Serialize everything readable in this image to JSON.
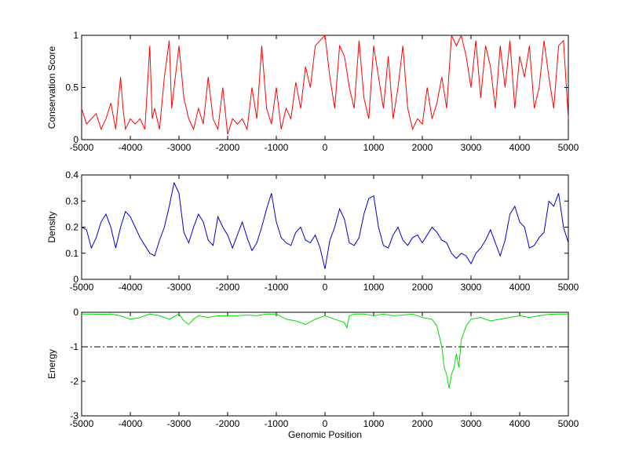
{
  "figure": {
    "background": "#ffffff"
  },
  "chart_data": [
    {
      "type": "line",
      "xlabel": "",
      "ylabel": "Conservation Score",
      "xlim": [
        -5000,
        5000
      ],
      "ylim": [
        0,
        1
      ],
      "xticks": [
        -5000,
        -4000,
        -3000,
        -2000,
        -1000,
        0,
        1000,
        2000,
        3000,
        4000,
        5000
      ],
      "yticks": [
        0,
        0.5,
        1
      ],
      "ytick_labels": [
        "0",
        "0.5",
        "1"
      ],
      "series": [
        {
          "color": "#ff0000",
          "x": [
            -5000,
            -4900,
            -4800,
            -4700,
            -4600,
            -4500,
            -4400,
            -4300,
            -4200,
            -4150,
            -4100,
            -4000,
            -3900,
            -3800,
            -3700,
            -3600,
            -3550,
            -3500,
            -3400,
            -3300,
            -3200,
            -3150,
            -3100,
            -3000,
            -2900,
            -2800,
            -2700,
            -2600,
            -2500,
            -2400,
            -2300,
            -2200,
            -2100,
            -2000,
            -1900,
            -1800,
            -1700,
            -1600,
            -1500,
            -1400,
            -1300,
            -1200,
            -1100,
            -1000,
            -900,
            -800,
            -700,
            -600,
            -500,
            -400,
            -300,
            -200,
            -100,
            0,
            100,
            200,
            300,
            400,
            500,
            600,
            700,
            800,
            900,
            1000,
            1100,
            1200,
            1300,
            1400,
            1500,
            1600,
            1700,
            1800,
            1900,
            2000,
            2100,
            2200,
            2300,
            2400,
            2500,
            2600,
            2700,
            2800,
            2900,
            3000,
            3100,
            3200,
            3300,
            3400,
            3500,
            3600,
            3700,
            3800,
            3900,
            4000,
            4100,
            4200,
            4300,
            4400,
            4500,
            4600,
            4700,
            4800,
            4900,
            5000
          ],
          "values": [
            0.3,
            0.15,
            0.2,
            0.25,
            0.1,
            0.2,
            0.35,
            0.1,
            0.6,
            0.3,
            0.1,
            0.2,
            0.15,
            0.2,
            0.1,
            0.9,
            0.2,
            0.3,
            0.1,
            0.6,
            0.95,
            0.3,
            0.5,
            0.9,
            0.4,
            0.2,
            0.1,
            0.3,
            0.15,
            0.6,
            0.2,
            0.1,
            0.5,
            0.05,
            0.2,
            0.15,
            0.2,
            0.1,
            0.5,
            0.2,
            0.9,
            0.3,
            0.15,
            0.5,
            0.1,
            0.3,
            0.2,
            0.55,
            0.3,
            0.7,
            0.5,
            0.9,
            0.95,
            1.0,
            0.6,
            0.3,
            0.9,
            0.8,
            0.5,
            0.3,
            0.95,
            0.4,
            0.2,
            0.9,
            0.6,
            0.3,
            0.8,
            0.2,
            0.5,
            0.9,
            0.3,
            0.1,
            0.2,
            0.15,
            0.5,
            0.2,
            0.35,
            0.6,
            0.3,
            1.0,
            0.9,
            1.0,
            0.8,
            0.5,
            0.95,
            0.4,
            0.9,
            0.7,
            0.3,
            0.9,
            0.5,
            0.95,
            0.3,
            0.8,
            0.6,
            0.9,
            0.3,
            0.5,
            0.95,
            0.6,
            0.3,
            0.9,
            0.95,
            0.2
          ]
        }
      ]
    },
    {
      "type": "line",
      "xlabel": "",
      "ylabel": "Density",
      "xlim": [
        -5000,
        5000
      ],
      "ylim": [
        0,
        0.4
      ],
      "xticks": [
        -5000,
        -4000,
        -3000,
        -2000,
        -1000,
        0,
        1000,
        2000,
        3000,
        4000,
        5000
      ],
      "yticks": [
        0,
        0.1,
        0.2,
        0.3,
        0.4
      ],
      "ytick_labels": [
        "0",
        "0.1",
        "0.2",
        "0.3",
        "0.4"
      ],
      "series": [
        {
          "color": "#0000cc",
          "x": [
            -5000,
            -4900,
            -4800,
            -4700,
            -4600,
            -4500,
            -4400,
            -4300,
            -4200,
            -4100,
            -4000,
            -3900,
            -3800,
            -3700,
            -3600,
            -3500,
            -3400,
            -3300,
            -3200,
            -3100,
            -3000,
            -2900,
            -2800,
            -2700,
            -2600,
            -2500,
            -2400,
            -2300,
            -2200,
            -2100,
            -2000,
            -1900,
            -1800,
            -1700,
            -1600,
            -1500,
            -1400,
            -1300,
            -1200,
            -1100,
            -1000,
            -900,
            -800,
            -700,
            -600,
            -500,
            -400,
            -300,
            -200,
            -100,
            0,
            100,
            200,
            300,
            400,
            500,
            600,
            700,
            800,
            900,
            1000,
            1100,
            1200,
            1300,
            1400,
            1500,
            1600,
            1700,
            1800,
            1900,
            2000,
            2100,
            2200,
            2300,
            2400,
            2500,
            2600,
            2700,
            2800,
            2900,
            3000,
            3100,
            3200,
            3300,
            3400,
            3500,
            3600,
            3700,
            3800,
            3900,
            4000,
            4100,
            4200,
            4300,
            4400,
            4500,
            4600,
            4700,
            4800,
            4900,
            5000
          ],
          "values": [
            0.2,
            0.19,
            0.12,
            0.16,
            0.22,
            0.25,
            0.2,
            0.12,
            0.2,
            0.26,
            0.24,
            0.2,
            0.16,
            0.13,
            0.1,
            0.09,
            0.15,
            0.2,
            0.28,
            0.37,
            0.33,
            0.18,
            0.14,
            0.2,
            0.25,
            0.22,
            0.15,
            0.13,
            0.24,
            0.2,
            0.17,
            0.12,
            0.17,
            0.22,
            0.16,
            0.11,
            0.14,
            0.2,
            0.27,
            0.33,
            0.22,
            0.16,
            0.14,
            0.13,
            0.18,
            0.2,
            0.15,
            0.14,
            0.17,
            0.12,
            0.04,
            0.15,
            0.2,
            0.27,
            0.23,
            0.14,
            0.13,
            0.16,
            0.25,
            0.31,
            0.32,
            0.2,
            0.13,
            0.12,
            0.17,
            0.2,
            0.15,
            0.13,
            0.16,
            0.17,
            0.14,
            0.17,
            0.2,
            0.18,
            0.15,
            0.14,
            0.1,
            0.08,
            0.1,
            0.09,
            0.06,
            0.1,
            0.12,
            0.15,
            0.19,
            0.14,
            0.09,
            0.15,
            0.25,
            0.28,
            0.22,
            0.2,
            0.12,
            0.13,
            0.16,
            0.18,
            0.3,
            0.28,
            0.33,
            0.2,
            0.14
          ]
        }
      ]
    },
    {
      "type": "line",
      "xlabel": "Genomic Position",
      "ylabel": "Energy",
      "xlim": [
        -5000,
        5000
      ],
      "ylim": [
        -3,
        0
      ],
      "xticks": [
        -5000,
        -4000,
        -3000,
        -2000,
        -1000,
        0,
        1000,
        2000,
        3000,
        4000,
        5000
      ],
      "yticks": [
        -3,
        -2,
        -1,
        0
      ],
      "ytick_labels": [
        "-3",
        "-2",
        "-1",
        "0"
      ],
      "reference_line": {
        "y": -1,
        "style": "dash-dot",
        "color": "#000000"
      },
      "series": [
        {
          "color": "#00dd00",
          "x": [
            -5000,
            -4800,
            -4600,
            -4400,
            -4200,
            -4000,
            -3800,
            -3600,
            -3400,
            -3200,
            -3000,
            -2900,
            -2800,
            -2700,
            -2600,
            -2400,
            -2200,
            -2000,
            -1800,
            -1600,
            -1400,
            -1200,
            -1000,
            -800,
            -600,
            -400,
            -200,
            0,
            200,
            400,
            450,
            500,
            600,
            800,
            1000,
            1200,
            1400,
            1600,
            1800,
            2000,
            2200,
            2300,
            2400,
            2450,
            2500,
            2550,
            2600,
            2650,
            2700,
            2750,
            2800,
            2850,
            2900,
            2950,
            3000,
            3200,
            3400,
            3600,
            3800,
            4000,
            4200,
            4400,
            4600,
            4800,
            5000
          ],
          "values": [
            -0.05,
            -0.05,
            -0.06,
            -0.05,
            -0.1,
            -0.2,
            -0.15,
            -0.05,
            -0.1,
            -0.2,
            -0.05,
            -0.25,
            -0.35,
            -0.2,
            -0.1,
            -0.15,
            -0.1,
            -0.1,
            -0.1,
            -0.08,
            -0.1,
            -0.05,
            -0.05,
            -0.2,
            -0.25,
            -0.35,
            -0.2,
            -0.1,
            -0.2,
            -0.3,
            -0.45,
            -0.1,
            -0.05,
            -0.05,
            -0.1,
            -0.05,
            -0.1,
            -0.08,
            -0.05,
            -0.15,
            -0.2,
            -0.4,
            -1.0,
            -1.6,
            -1.8,
            -2.2,
            -1.8,
            -1.6,
            -1.2,
            -1.6,
            -0.8,
            -0.6,
            -0.4,
            -0.3,
            -0.2,
            -0.15,
            -0.25,
            -0.2,
            -0.15,
            -0.1,
            -0.15,
            -0.1,
            -0.06,
            -0.05,
            -0.05
          ]
        }
      ]
    }
  ]
}
